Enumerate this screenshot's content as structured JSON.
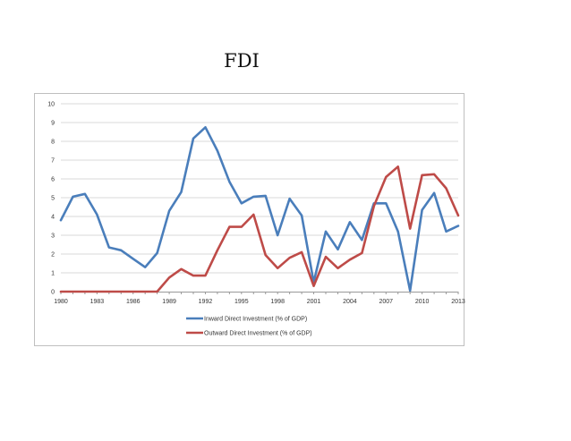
{
  "slide": {
    "title": "FDI"
  },
  "chart_data": {
    "type": "line",
    "title": "",
    "xlabel": "",
    "ylabel": "",
    "x": [
      1980,
      1981,
      1982,
      1983,
      1984,
      1985,
      1986,
      1987,
      1988,
      1989,
      1990,
      1991,
      1992,
      1993,
      1994,
      1995,
      1996,
      1997,
      1998,
      1999,
      2000,
      2001,
      2002,
      2003,
      2004,
      2005,
      2006,
      2007,
      2008,
      2009,
      2010,
      2011,
      2012,
      2013
    ],
    "xticks": [
      "1980",
      "1983",
      "1986",
      "1989",
      "1992",
      "1995",
      "1998",
      "2001",
      "2004",
      "2007",
      "2010",
      "2013"
    ],
    "yticks": [
      "0",
      "1",
      "2",
      "3",
      "4",
      "5",
      "6",
      "7",
      "8",
      "9",
      "10"
    ],
    "ylim": [
      0,
      10
    ],
    "grid": true,
    "legend_position": "bottom",
    "series": [
      {
        "name": "Inward Direct Investment (% of GDP)",
        "color": "#4a7ebb",
        "values": [
          3.8,
          5.05,
          5.2,
          4.1,
          2.35,
          2.2,
          1.75,
          1.3,
          2.05,
          4.3,
          5.3,
          8.15,
          8.75,
          7.5,
          5.85,
          4.7,
          5.05,
          5.1,
          3.0,
          4.95,
          4.05,
          0.5,
          3.2,
          2.25,
          3.7,
          2.75,
          4.7,
          4.7,
          3.2,
          0.05,
          4.35,
          5.25,
          3.2,
          3.5
        ]
      },
      {
        "name": "Outward Direct Investment (% of GDP)",
        "color": "#be4b48",
        "values": [
          0,
          0,
          0,
          0,
          0,
          0,
          0,
          0,
          0,
          0.75,
          1.2,
          0.85,
          0.85,
          2.2,
          3.45,
          3.45,
          4.1,
          1.95,
          1.25,
          1.8,
          2.1,
          0.3,
          1.85,
          1.25,
          1.7,
          2.05,
          4.55,
          6.1,
          6.65,
          3.35,
          6.2,
          6.25,
          5.5,
          4.05
        ]
      }
    ]
  }
}
